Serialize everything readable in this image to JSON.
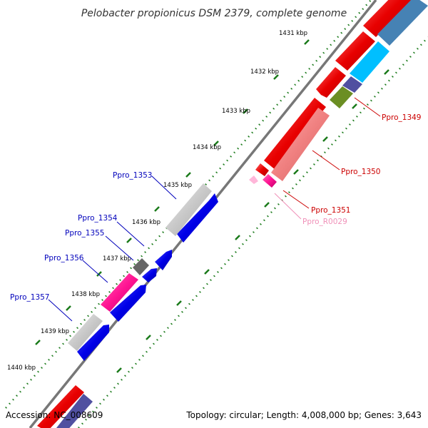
{
  "title": "Pelobacter propionicus DSM 2379, complete genome",
  "accession": "Accession: NC_008609",
  "summary": "Topology: circular; Length: 4,008,000 bp; Genes: 3,643",
  "ticks": [
    {
      "label": "1431 kbp"
    },
    {
      "label": "1432 kbp"
    },
    {
      "label": "1433 kbp"
    },
    {
      "label": "1434 kbp"
    },
    {
      "label": "1435 kbp"
    },
    {
      "label": "1436 kbp"
    },
    {
      "label": "1437 kbp"
    },
    {
      "label": "1438 kbp"
    },
    {
      "label": "1439 kbp"
    },
    {
      "label": "1440 kbp"
    }
  ],
  "gene_labels": [
    {
      "text": "Ppro_1349",
      "color": "#cc0000"
    },
    {
      "text": "Ppro_1350",
      "color": "#cc0000"
    },
    {
      "text": "Ppro_1351",
      "color": "#cc0000"
    },
    {
      "text": "Ppro_R0029",
      "color": "#f090b8"
    },
    {
      "text": "Ppro_1353",
      "color": "#0000bb"
    },
    {
      "text": "Ppro_1354",
      "color": "#0000bb"
    },
    {
      "text": "Ppro_1355",
      "color": "#0000bb"
    },
    {
      "text": "Ppro_1356",
      "color": "#0000bb"
    },
    {
      "text": "Ppro_1357",
      "color": "#0000bb"
    }
  ],
  "colors": {
    "forward_cds": "#e80000",
    "reverse_cds": "#0000e8",
    "rna": "#ff1493",
    "trna": "#ffb6d9",
    "cog_steelblue": "#4682b4",
    "cog_cyan": "#00bfff",
    "cog_olive": "#6b8e23",
    "cog_salmon": "#f08080",
    "cog_gray": "#c8c8c8",
    "cog_darkgray": "#666666",
    "cog_purple": "#5050a0",
    "backbone": "#777777",
    "tick": "#1a7a1a"
  }
}
